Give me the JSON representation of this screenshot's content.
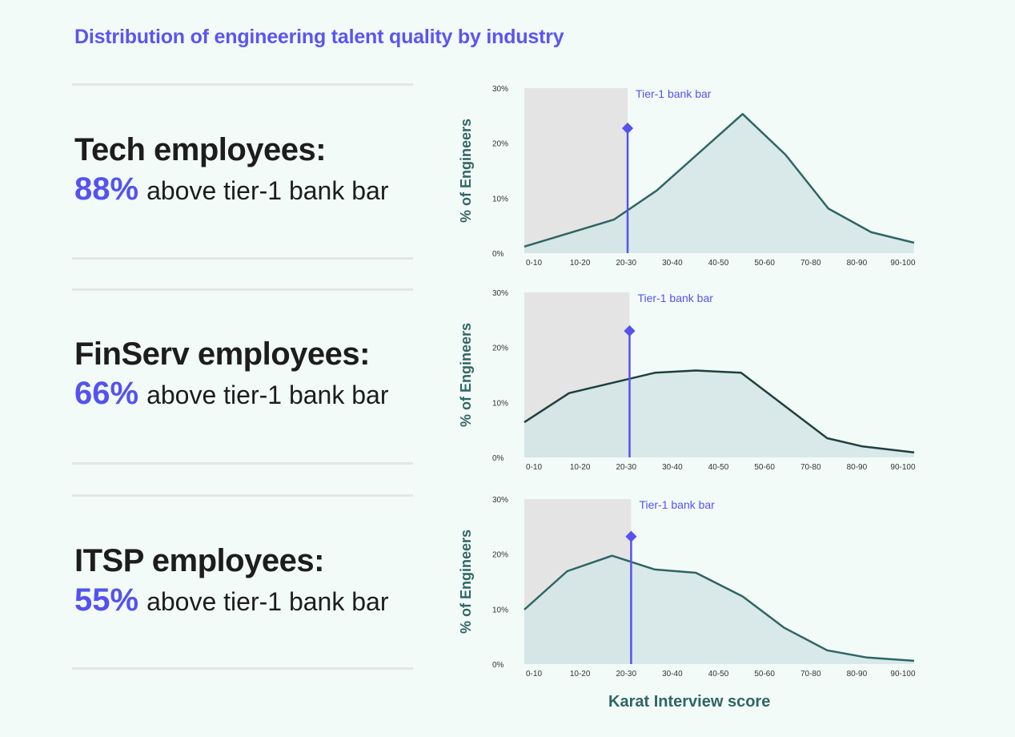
{
  "title": "Distribution of engineering talent quality by industry",
  "colors": {
    "accent": "#5552f0",
    "line": "#2e6663",
    "line_dark": "#1f403d",
    "fill": "#d3e5e6",
    "shade": "#e5e4e4",
    "background": "#f3fbf9"
  },
  "panels": [
    {
      "heading": "Tech employees:",
      "percent": "88%",
      "suffix": "above tier-1 bank bar"
    },
    {
      "heading": "FinServ employees:",
      "percent": "66%",
      "suffix": "above tier-1 bank bar"
    },
    {
      "heading": "ITSP employees:",
      "percent": "55%",
      "suffix": "above tier-1 bank bar"
    }
  ],
  "chart_data": [
    {
      "type": "area",
      "ylabel": "% of Engineers",
      "xlabel": "",
      "x_tick_labels": [
        "0-10",
        "10-20",
        "20-30",
        "30-40",
        "40-50",
        "50-60",
        "70-80",
        "80-90",
        "90-100"
      ],
      "y_tick_labels": [
        "0%",
        "10%",
        "20%",
        "30%"
      ],
      "xlim": [
        0,
        100
      ],
      "ylim": [
        0,
        30
      ],
      "series": [
        {
          "x": [
            0,
            23,
            34,
            56,
            67,
            78,
            89,
            100
          ],
          "y": [
            1.2,
            6.1,
            11.4,
            25.3,
            17.9,
            8.1,
            3.8,
            1.9
          ]
        }
      ],
      "annotation": {
        "label": "Tier-1 bank bar",
        "x": 26.5,
        "y": 22.7
      },
      "line_color": "#2e6663"
    },
    {
      "type": "area",
      "ylabel": "% of Engineers",
      "xlabel": "",
      "x_tick_labels": [
        "0-10",
        "10-20",
        "20-30",
        "30-40",
        "40-50",
        "50-60",
        "70-80",
        "80-90",
        "90-100"
      ],
      "y_tick_labels": [
        "0%",
        "10%",
        "20%",
        "30%"
      ],
      "xlim": [
        0,
        100
      ],
      "ylim": [
        0,
        30
      ],
      "series": [
        {
          "x": [
            0,
            11.5,
            33.5,
            44,
            55.6,
            77.7,
            86.8,
            100
          ],
          "y": [
            6.4,
            11.7,
            15.4,
            15.8,
            15.4,
            3.5,
            2.0,
            0.9
          ]
        }
      ],
      "annotation": {
        "label": "Tier-1 bank bar",
        "x": 27,
        "y": 23
      },
      "line_color": "#1f403d"
    },
    {
      "type": "area",
      "ylabel": "% of Engineers",
      "xlabel": "Karat Interview score",
      "x_tick_labels": [
        "0-10",
        "10-20",
        "20-30",
        "30-40",
        "40-50",
        "50-60",
        "70-80",
        "80-90",
        "90-100"
      ],
      "y_tick_labels": [
        "0%",
        "10%",
        "20%",
        "30%"
      ],
      "xlim": [
        0,
        100
      ],
      "ylim": [
        0,
        30
      ],
      "series": [
        {
          "x": [
            0,
            11,
            22.5,
            33.5,
            44,
            56,
            66.7,
            77.7,
            87.9,
            100
          ],
          "y": [
            9.9,
            16.9,
            19.7,
            17.2,
            16.6,
            12.3,
            6.6,
            2.5,
            1.2,
            0.6
          ]
        }
      ],
      "annotation": {
        "label": "Tier-1 bank bar",
        "x": 27.4,
        "y": 23.2
      },
      "line_color": "#2e6663"
    }
  ]
}
